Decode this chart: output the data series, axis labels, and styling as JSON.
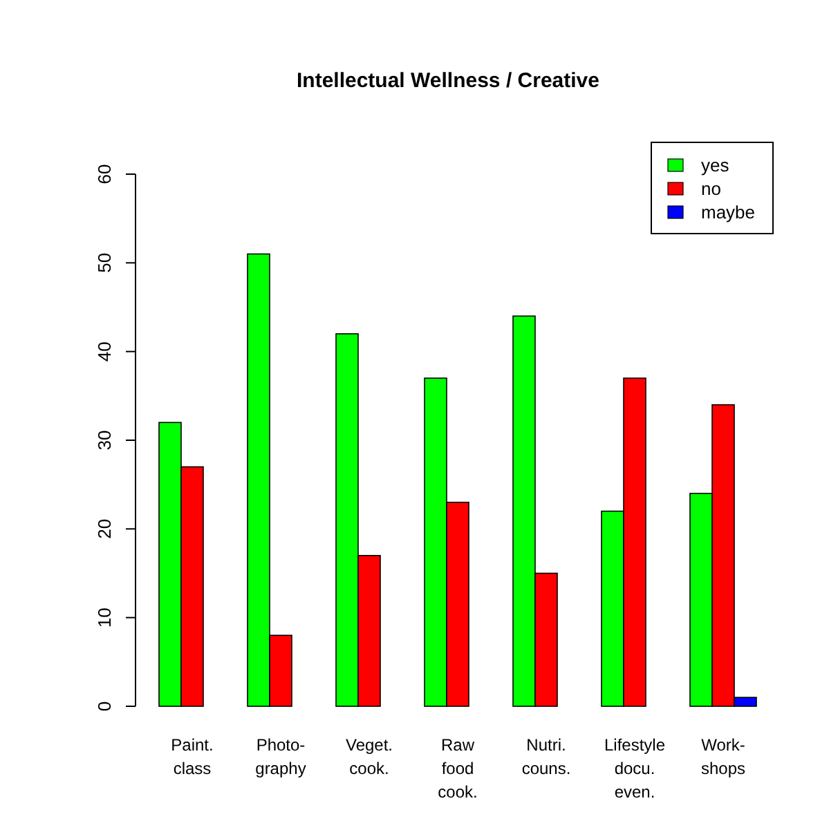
{
  "chart_data": {
    "type": "bar",
    "title": "Intellectual Wellness / Creative",
    "categories": [
      "Paint.\nclass",
      "Photo-\ngraphy",
      "Veget.\ncook.",
      "Raw\nfood\ncook.",
      "Nutri.\ncouns.",
      "Lifestyle\ndocu.\neven.",
      "Work-\nshops"
    ],
    "series": [
      {
        "name": "yes",
        "color": "#00ff00",
        "values": [
          32,
          51,
          42,
          37,
          44,
          22,
          24
        ]
      },
      {
        "name": "no",
        "color": "#ff0000",
        "values": [
          27,
          8,
          17,
          23,
          15,
          37,
          34
        ]
      },
      {
        "name": "maybe",
        "color": "#0000ff",
        "values": [
          0,
          0,
          0,
          0,
          0,
          0,
          1
        ]
      }
    ],
    "ylim": [
      0,
      60
    ],
    "yticks": [
      0,
      10,
      20,
      30,
      40,
      50,
      60
    ],
    "legend": "top right",
    "grid": false
  }
}
